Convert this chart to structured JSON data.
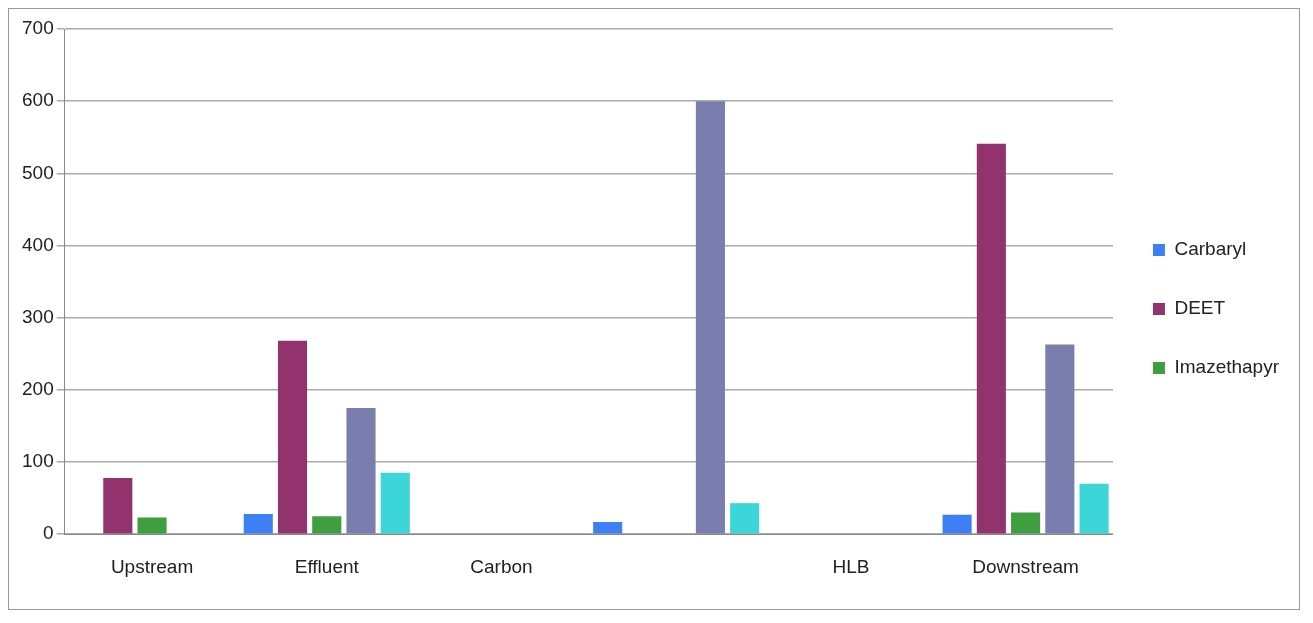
{
  "chart_data": {
    "type": "bar",
    "categories": [
      "Upstream",
      "Effluent",
      "Carbon",
      null,
      "HLB",
      "Downstream"
    ],
    "series": [
      {
        "name": "Carbaryl",
        "color": "#3f7ff5",
        "values": [
          null,
          28,
          null,
          17,
          null,
          27
        ]
      },
      {
        "name": "DEET",
        "color": "#93336d",
        "values": [
          78,
          268,
          null,
          null,
          null,
          541
        ]
      },
      {
        "name": "Imazethapyr",
        "color": "#3f9e40",
        "values": [
          23,
          25,
          null,
          null,
          null,
          30
        ]
      },
      {
        "color": "#7a7eae",
        "values": [
          null,
          175,
          null,
          600,
          null,
          263
        ]
      },
      {
        "color": "#3dd6d8",
        "values": [
          null,
          85,
          null,
          43,
          null,
          70
        ]
      }
    ],
    "ylim": [
      0,
      700
    ],
    "yticks": [
      0,
      100,
      200,
      300,
      400,
      500,
      600,
      700
    ],
    "grid": "y",
    "legend": "right"
  }
}
